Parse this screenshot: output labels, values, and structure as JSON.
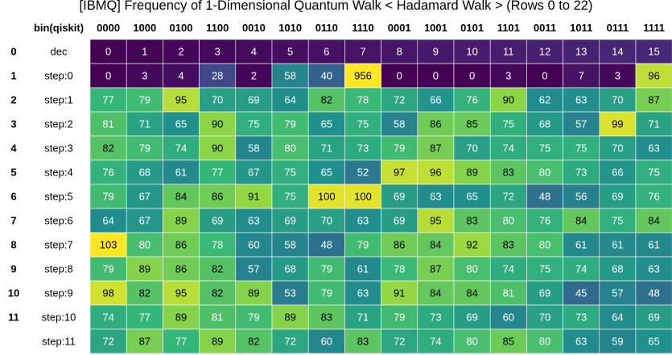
{
  "title": "[IBMQ] Frequency of 1-Dimensional Quantum Walk < Hadamard Walk > (Rows 0 to 22)",
  "chart_data": {
    "type": "heatmap",
    "title": "[IBMQ] Frequency of 1-Dimensional Quantum Walk < Hadamard Walk > (Rows 0 to 22)",
    "corner_label": "bin(qiskit)",
    "columns": [
      "0000",
      "1000",
      "0100",
      "1100",
      "0010",
      "1010",
      "0110",
      "1110",
      "0001",
      "1001",
      "0101",
      "1101",
      "0011",
      "1011",
      "0111",
      "1111"
    ],
    "row_indices": [
      "0",
      "1",
      "2",
      "3",
      "4",
      "5",
      "6",
      "7",
      "8",
      "9",
      "10",
      "11"
    ],
    "row_labels": [
      "dec",
      "step:0",
      "step:1",
      "step:2",
      "step:3",
      "step:4",
      "step:5",
      "step:6",
      "step:7",
      "step:8",
      "step:9",
      "step:10",
      "step:11"
    ],
    "values": [
      [
        0,
        1,
        2,
        3,
        4,
        5,
        6,
        7,
        8,
        9,
        10,
        11,
        12,
        13,
        14,
        15
      ],
      [
        0,
        3,
        4,
        28,
        2,
        58,
        40,
        956,
        0,
        0,
        0,
        3,
        0,
        7,
        3,
        96
      ],
      [
        77,
        79,
        95,
        70,
        69,
        64,
        82,
        78,
        72,
        66,
        76,
        90,
        62,
        63,
        70,
        87
      ],
      [
        81,
        71,
        65,
        90,
        75,
        79,
        65,
        75,
        58,
        86,
        85,
        75,
        68,
        57,
        99,
        71
      ],
      [
        82,
        79,
        74,
        90,
        58,
        80,
        71,
        73,
        79,
        87,
        70,
        74,
        75,
        75,
        70,
        63
      ],
      [
        76,
        68,
        61,
        77,
        67,
        75,
        65,
        52,
        97,
        96,
        89,
        83,
        80,
        73,
        66,
        75
      ],
      [
        79,
        67,
        84,
        86,
        91,
        75,
        100,
        100,
        69,
        63,
        65,
        72,
        48,
        56,
        69,
        76
      ],
      [
        64,
        67,
        89,
        69,
        63,
        69,
        70,
        63,
        69,
        95,
        83,
        80,
        76,
        84,
        75,
        84
      ],
      [
        103,
        80,
        86,
        78,
        60,
        58,
        48,
        79,
        86,
        84,
        92,
        83,
        80,
        61,
        61,
        61
      ],
      [
        79,
        89,
        86,
        82,
        57,
        68,
        79,
        61,
        78,
        87,
        80,
        74,
        75,
        74,
        68,
        63
      ],
      [
        98,
        82,
        95,
        82,
        89,
        53,
        79,
        63,
        91,
        84,
        84,
        81,
        69,
        45,
        57,
        48
      ],
      [
        74,
        77,
        89,
        81,
        79,
        89,
        83,
        71,
        79,
        73,
        69,
        60,
        70,
        73,
        64,
        69
      ],
      [
        72,
        87,
        77,
        89,
        82,
        72,
        60,
        83,
        72,
        74,
        80,
        85,
        80,
        63,
        59,
        65
      ]
    ],
    "colormap": "viridis",
    "colors": {
      "low": "#440154",
      "mid": "#21918c",
      "high": "#fde725",
      "border": "#ffffff"
    }
  }
}
